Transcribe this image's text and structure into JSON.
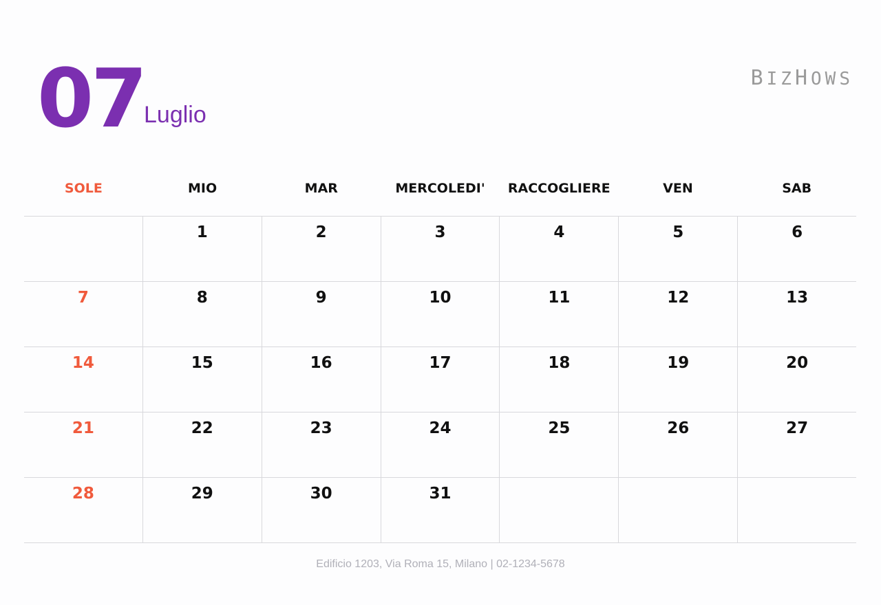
{
  "header": {
    "month_number": "07",
    "month_name": "Luglio",
    "logo": "BizHows"
  },
  "weekdays": [
    "SOLE",
    "MIO",
    "MAR",
    "MERCOLEDI'",
    "RACCOGLIERE",
    "VEN",
    "SAB"
  ],
  "weeks": [
    [
      "",
      "1",
      "2",
      "3",
      "4",
      "5",
      "6"
    ],
    [
      "7",
      "8",
      "9",
      "10",
      "11",
      "12",
      "13"
    ],
    [
      "14",
      "15",
      "16",
      "17",
      "18",
      "19",
      "20"
    ],
    [
      "21",
      "22",
      "23",
      "24",
      "25",
      "26",
      "27"
    ],
    [
      "28",
      "29",
      "30",
      "31",
      "",
      "",
      ""
    ]
  ],
  "footer": "Edificio 1203, Via Roma 15, Milano | 02-1234-5678",
  "colors": {
    "accent": "#7b2fb0",
    "sunday": "#f05a3c",
    "grid": "#d8d8dc"
  }
}
